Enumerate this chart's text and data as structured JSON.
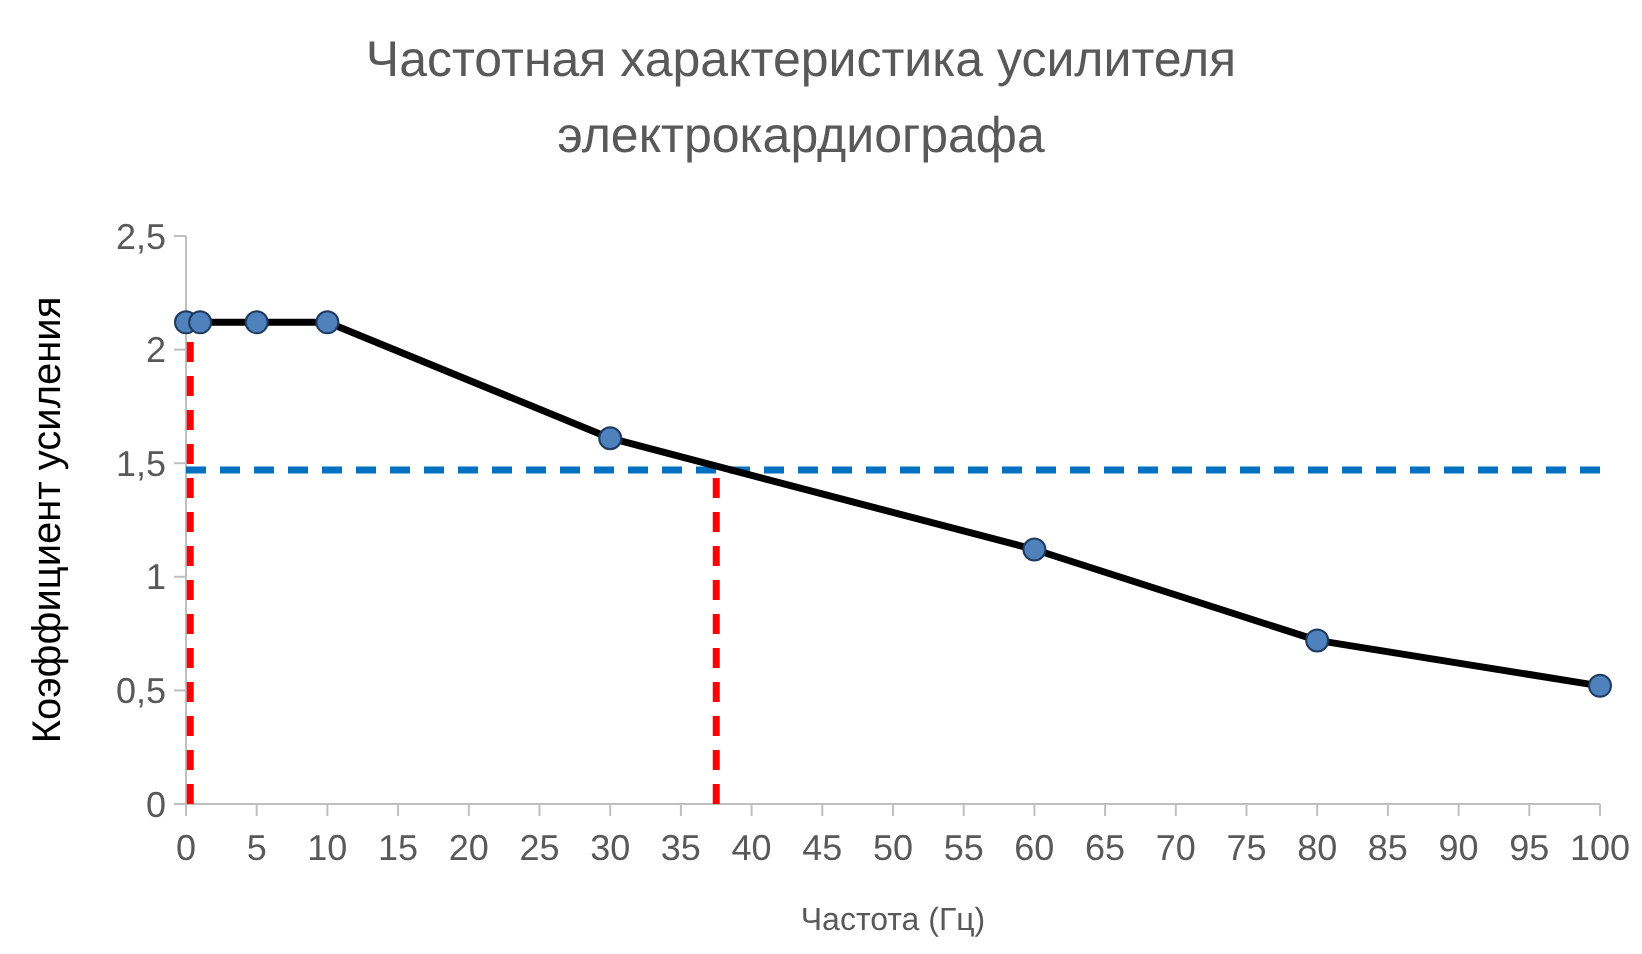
{
  "chart_data": {
    "type": "line",
    "title": "Частотная характеристика усилителя электрокардиографа",
    "xlabel": "Частота (Гц)",
    "ylabel": "Коэффициент усиления",
    "x": [
      0,
      1,
      5,
      10,
      30,
      60,
      80,
      100
    ],
    "series": [
      {
        "color": "#000000",
        "values": [
          2.12,
          2.12,
          2.12,
          2.12,
          1.61,
          1.12,
          0.72,
          0.52
        ]
      }
    ],
    "marker": "circle",
    "line_style": "solid",
    "grid": false,
    "xlim": [
      0,
      100
    ],
    "xticks": [
      0,
      5,
      10,
      15,
      20,
      25,
      30,
      35,
      40,
      45,
      50,
      55,
      60,
      65,
      70,
      75,
      80,
      85,
      90,
      95,
      100
    ],
    "ylim": [
      0,
      2.5
    ],
    "yticks": [
      {
        "value": 0,
        "label": "0"
      },
      {
        "value": 0.5,
        "label": "0,5"
      },
      {
        "value": 1,
        "label": "1"
      },
      {
        "value": 1.5,
        "label": "1,5"
      },
      {
        "value": 2,
        "label": "2"
      },
      {
        "value": 2.5,
        "label": "2,5"
      }
    ],
    "ref_lines": [
      {
        "axis": "y",
        "value": 1.47,
        "color": "#0070c0",
        "line_style": "dashed"
      },
      {
        "axis": "x",
        "value": 0.3,
        "color": "#ff0000",
        "line_style": "dashed"
      },
      {
        "axis": "x",
        "value": 37.5,
        "color": "#ff0000",
        "line_style": "dashed"
      }
    ]
  }
}
